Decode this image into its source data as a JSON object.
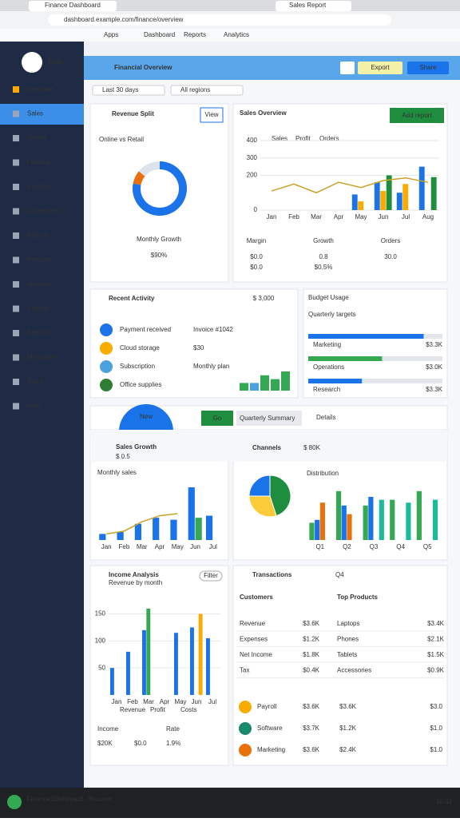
{
  "browser": {
    "tab": "Finance Dashboard",
    "tab2": "Sales Report",
    "url": "dashboard.example.com/finance/overview",
    "bookmarks": [
      "Apps",
      "Dashboard",
      "Reports",
      "Analytics"
    ]
  },
  "sidebar": {
    "brand": "Finix",
    "items": [
      "Overview",
      "Sales",
      "Orders",
      "Finance",
      "Analytics",
      "Customers",
      "Reports",
      "Products",
      "Invoices",
      "Support",
      "Settings",
      "Messages",
      "Team",
      "Help"
    ]
  },
  "header": {
    "title": "Financial Overview",
    "buttons": [
      "Export",
      "Share"
    ]
  },
  "filters": [
    "Last 30 days",
    "All regions"
  ],
  "donut_card": {
    "title": "Revenue Split",
    "button": "View",
    "legend": "Online vs Retail",
    "label": "Monthly Growth",
    "value_label": "$90%",
    "values": [
      78,
      8,
      14
    ],
    "colors": [
      "#1a73e8",
      "#e8710a",
      "#dde3ea"
    ]
  },
  "combo_card": {
    "title": "Sales Overview",
    "button": "Add report",
    "legend": [
      "Sales",
      "Profit",
      "Orders"
    ],
    "chart": {
      "categories": [
        "Jan",
        "Feb",
        "Mar",
        "Apr",
        "May",
        "Jun",
        "Jul",
        "Aug"
      ],
      "ylim": [
        0,
        400
      ],
      "yticks": [
        0,
        200,
        300,
        400
      ],
      "series": [
        {
          "name": "Sales",
          "color": "#1a73e8",
          "values": [
            null,
            null,
            null,
            null,
            90,
            160,
            100,
            250
          ]
        },
        {
          "name": "Profit",
          "color": "#f9ab00",
          "values": [
            null,
            null,
            null,
            null,
            50,
            110,
            150,
            null
          ]
        },
        {
          "name": "Orders",
          "color": "#1e8e3e",
          "values": [
            null,
            null,
            null,
            null,
            null,
            200,
            null,
            190
          ]
        },
        {
          "name": "Trend",
          "type": "line",
          "color": "#c9a227",
          "values": [
            110,
            150,
            100,
            160,
            130,
            170,
            185,
            160
          ]
        }
      ]
    },
    "stats": [
      {
        "label": "Margin",
        "value": "$0.0",
        "sub": "$0.0"
      },
      {
        "label": "Growth",
        "value": "0.8",
        "sub": "$0.5%"
      },
      {
        "label": "Orders",
        "value": "30.0"
      }
    ]
  },
  "list_card": {
    "title": "Recent Activity",
    "badge": "$ 3,000",
    "items": [
      {
        "name": "Payment received",
        "detail": "Invoice #1042"
      },
      {
        "name": "Cloud storage",
        "detail": "$30"
      },
      {
        "name": "Subscription",
        "detail": "Monthly plan"
      },
      {
        "name": "Office supplies",
        "detail": ""
      }
    ],
    "mini": {
      "ylim": [
        0,
        40
      ],
      "values": [
        12,
        12,
        24,
        18,
        30
      ]
    }
  },
  "progress_card": {
    "title": "Budget Usage",
    "subtitle": "Quarterly targets",
    "items": [
      {
        "name": "Marketing",
        "value": 86,
        "label": "$3.3K"
      },
      {
        "name": "Operations",
        "value": 55,
        "label": "$3.0K"
      },
      {
        "name": "Research",
        "value": 40,
        "label": "$3.3K"
      }
    ]
  },
  "banner": {
    "tag": "New",
    "button": "Go",
    "text": "Quarterly Summary",
    "right": "Details"
  },
  "trend_card": {
    "title": "Sales Growth",
    "subtitle": "$ 0.5",
    "link": "Monthly sales",
    "chart": {
      "categories": [
        "Jan",
        "Feb",
        "Mar",
        "Apr",
        "May",
        "Jun",
        "Jul"
      ],
      "ylim": [
        0,
        140
      ],
      "series": [
        {
          "name": "Online",
          "color": "#1a73e8",
          "values": [
            15,
            20,
            40,
            55,
            50,
            130,
            60
          ]
        },
        {
          "name": "Retail",
          "color": "#34a853",
          "values": [
            null,
            null,
            null,
            null,
            null,
            55,
            null
          ]
        },
        {
          "name": "Trend",
          "type": "line",
          "color": "#c9a227",
          "values": [
            15,
            22,
            45,
            60,
            65,
            null,
            null
          ]
        }
      ]
    }
  },
  "mix_card": {
    "title": "Channels",
    "value": "$ 80K",
    "link": "Distribution",
    "pie": {
      "values": [
        45,
        30,
        25
      ],
      "colors": [
        "#1e8e3e",
        "#fbcb3a",
        "#1a73e8"
      ]
    },
    "chart": {
      "categories": [
        "Q1",
        "Q2",
        "Q3",
        "Q4",
        "Q5"
      ],
      "ylim": [
        0,
        100
      ],
      "series": [
        {
          "name": "A",
          "color": "#34a853",
          "values": [
            30,
            85,
            60,
            70,
            85
          ]
        },
        {
          "name": "B",
          "color": "#1a73e8",
          "values": [
            35,
            60,
            75,
            null,
            null
          ]
        },
        {
          "name": "C",
          "color": "#e8710a",
          "values": [
            65,
            45,
            null,
            null,
            null
          ]
        },
        {
          "name": "D",
          "color": "#1abc9c",
          "values": [
            null,
            null,
            70,
            65,
            70
          ]
        }
      ]
    }
  },
  "bars_card": {
    "title": "Income Analysis",
    "subtitle": "Revenue by month",
    "button": "Filter",
    "chart": {
      "categories": [
        "Jan",
        "Feb",
        "Mar",
        "Apr",
        "May",
        "Jun",
        "Jul"
      ],
      "ylim": [
        0,
        170
      ],
      "yticks": [
        50,
        100,
        150
      ],
      "series": [
        {
          "name": "Revenue",
          "color": "#1a73e8",
          "values": [
            50,
            80,
            120,
            null,
            115,
            125,
            105
          ]
        },
        {
          "name": "Profit",
          "color": "#34a853",
          "values": [
            null,
            null,
            160,
            null,
            null,
            null,
            null
          ]
        },
        {
          "name": "Costs",
          "color": "#f9ab00",
          "values": [
            null,
            null,
            null,
            null,
            null,
            150,
            null
          ]
        }
      ]
    },
    "stats": [
      {
        "label": "Income",
        "value": "$20K",
        "sub": "$0.0"
      },
      {
        "label": "Rate",
        "value": "1.9%"
      }
    ]
  },
  "table_card": {
    "title": "Transactions",
    "tag": "Q4",
    "columns": [
      "Customers",
      "Top Products"
    ],
    "rows": [
      [
        "Revenue",
        "$3.6K",
        "Laptops",
        "$3.4K"
      ],
      [
        "Expenses",
        "$1.2K",
        "Phones",
        "$2.1K"
      ],
      [
        "Net Income",
        "$1.8K",
        "Tablets",
        "$1.5K"
      ],
      [
        "Tax",
        "$0.4K",
        "Accessories",
        "$0.9K"
      ]
    ],
    "footer": [
      [
        "Payroll",
        "$3.6K",
        "$3.6K",
        "$3.0"
      ],
      [
        "Software",
        "$3.7K",
        "$1.2K",
        "$1.0"
      ],
      [
        "Marketing",
        "$3.6K",
        "$2.4K",
        "$1.0"
      ]
    ]
  },
  "taskbar": {
    "text": "Finance Dashboard - Browser",
    "time": "10:42"
  }
}
